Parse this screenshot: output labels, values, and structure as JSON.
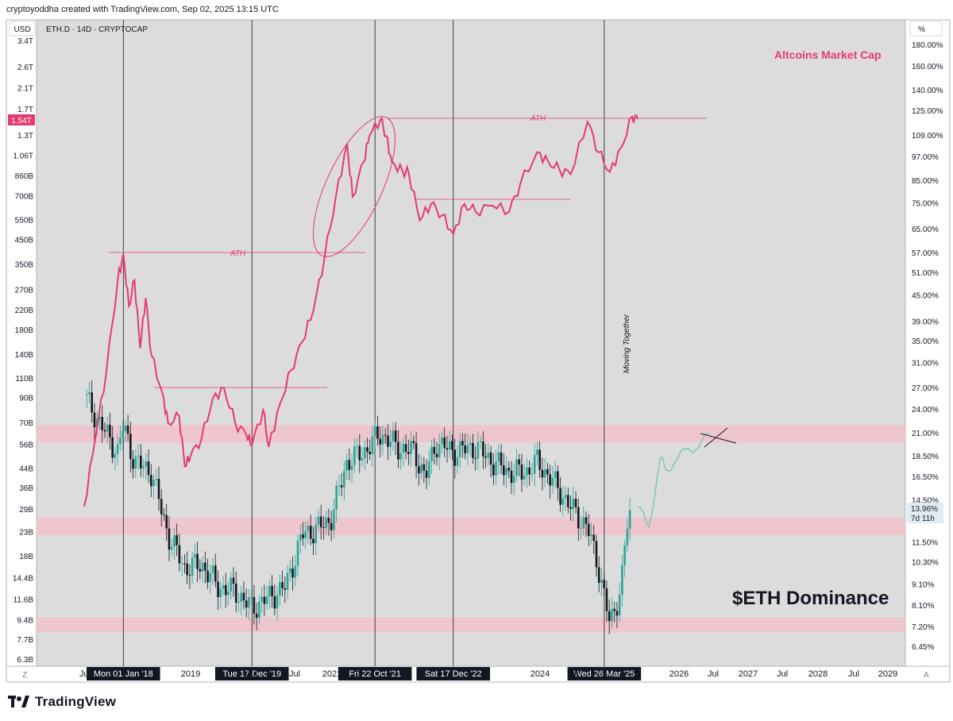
{
  "header": {
    "text": "cryptoyoddha created with TradingView.com, Sep 02, 2025 13:15 UTC"
  },
  "symbol": {
    "text": "ETH.D · 14D · CRYPTOCAP"
  },
  "currency_button": "USD",
  "percent_button": "%",
  "corner_z": "Z",
  "corner_a": "A",
  "footer": {
    "brand": "TradingView"
  },
  "colors": {
    "altcap": "#e63a6e",
    "up": "#26a69a",
    "down": "#131722",
    "zone": "#f2c2ca",
    "forecast": "#8cc4ba"
  },
  "chart_data": [
    {
      "type": "line",
      "name": "altcoins-market-cap",
      "title": "Altcoins Market Cap",
      "scale": "log",
      "y_ticks_left": [
        "3.4T",
        "2.6T",
        "2.1T",
        "1.7T",
        "1.3T",
        "1.06T",
        "860B",
        "700B",
        "550B",
        "450B",
        "350B",
        "270B",
        "220B",
        "180B",
        "140B",
        "110B",
        "90B",
        "70B",
        "56B",
        "44B",
        "36B",
        "29B",
        "23B",
        "18B",
        "14.4B",
        "11.6B",
        "9.4B",
        "7.7B",
        "6.3B"
      ],
      "last_value_label": "1.54T",
      "x_ticks": [
        "Jul",
        "2019",
        "Jul",
        "Jul",
        "2021",
        "2024",
        "Jul",
        "2026",
        "Jul",
        "2027",
        "Jul",
        "2028",
        "Jul",
        "2029"
      ],
      "points": [
        [
          "2017-06",
          30
        ],
        [
          "2017-08",
          60
        ],
        [
          "2017-10",
          120
        ],
        [
          "2017-12",
          300
        ],
        [
          "2018-01",
          390
        ],
        [
          "2018-02",
          230
        ],
        [
          "2018-03",
          300
        ],
        [
          "2018-04",
          150
        ],
        [
          "2018-05",
          250
        ],
        [
          "2018-06",
          140
        ],
        [
          "2018-08",
          95
        ],
        [
          "2018-09",
          70
        ],
        [
          "2018-11",
          75
        ],
        [
          "2018-12",
          45
        ],
        [
          "2019-01",
          50
        ],
        [
          "2019-03",
          60
        ],
        [
          "2019-05",
          90
        ],
        [
          "2019-07",
          100
        ],
        [
          "2019-09",
          70
        ],
        [
          "2019-11",
          62
        ],
        [
          "2019-12",
          56
        ],
        [
          "2020-02",
          80
        ],
        [
          "2020-03",
          55
        ],
        [
          "2020-05",
          85
        ],
        [
          "2020-07",
          120
        ],
        [
          "2020-09",
          160
        ],
        [
          "2020-11",
          220
        ],
        [
          "2021-01",
          380
        ],
        [
          "2021-03",
          700
        ],
        [
          "2021-05",
          1200
        ],
        [
          "2021-06",
          700
        ],
        [
          "2021-08",
          1000
        ],
        [
          "2021-09",
          1300
        ],
        [
          "2021-11",
          1540
        ],
        [
          "2021-12",
          1300
        ],
        [
          "2022-01",
          1000
        ],
        [
          "2022-03",
          900
        ],
        [
          "2022-04",
          900
        ],
        [
          "2022-06",
          550
        ],
        [
          "2022-08",
          650
        ],
        [
          "2022-10",
          580
        ],
        [
          "2022-12",
          480
        ],
        [
          "2023-02",
          650
        ],
        [
          "2023-04",
          600
        ],
        [
          "2023-07",
          640
        ],
        [
          "2023-10",
          600
        ],
        [
          "2023-12",
          800
        ],
        [
          "2024-03",
          1100
        ],
        [
          "2024-05",
          1000
        ],
        [
          "2024-07",
          920
        ],
        [
          "2024-09",
          880
        ],
        [
          "2024-12",
          1500
        ],
        [
          "2025-02",
          1100
        ],
        [
          "2025-04",
          900
        ],
        [
          "2025-06",
          1150
        ],
        [
          "2025-08",
          1580
        ],
        [
          "2025-09",
          1540
        ]
      ]
    },
    {
      "type": "candlestick",
      "name": "eth-dominance",
      "title": "$ETH Dominance",
      "scale": "log",
      "unit": "%",
      "y_ticks_right": [
        "180.00%",
        "160.00%",
        "140.00%",
        "125.00%",
        "109.00%",
        "97.00%",
        "85.00%",
        "75.00%",
        "65.00%",
        "57.00%",
        "51.00%",
        "45.00%",
        "39.00%",
        "35.00%",
        "31.00%",
        "27.00%",
        "24.00%",
        "21.00%",
        "18.50%",
        "16.50%",
        "14.50%",
        "13.00%",
        "11.50%",
        "10.30%",
        "9.10%",
        "8.10%",
        "7.20%",
        "6.45%"
      ],
      "last_value_label": "13.96%",
      "countdown_label": "7d 11h",
      "path": [
        [
          "2017-06",
          26
        ],
        [
          "2017-09",
          22
        ],
        [
          "2017-12",
          19
        ],
        [
          "2018-01",
          22
        ],
        [
          "2018-03",
          18
        ],
        [
          "2018-06",
          17
        ],
        [
          "2018-09",
          12
        ],
        [
          "2018-12",
          10
        ],
        [
          "2019-03",
          10.2
        ],
        [
          "2019-06",
          9
        ],
        [
          "2019-09",
          8.8
        ],
        [
          "2019-12",
          8
        ],
        [
          "2020-03",
          8.5
        ],
        [
          "2020-06",
          9
        ],
        [
          "2020-09",
          12
        ],
        [
          "2020-12",
          12.5
        ],
        [
          "2021-02",
          13
        ],
        [
          "2021-05",
          18
        ],
        [
          "2021-08",
          19
        ],
        [
          "2021-11",
          21
        ],
        [
          "2022-02",
          19.5
        ],
        [
          "2022-05",
          19
        ],
        [
          "2022-07",
          16.5
        ],
        [
          "2022-09",
          20
        ],
        [
          "2022-12",
          19
        ],
        [
          "2023-04",
          19.5
        ],
        [
          "2023-07",
          18
        ],
        [
          "2023-10",
          17
        ],
        [
          "2024-01",
          17
        ],
        [
          "2024-03",
          18
        ],
        [
          "2024-06",
          16
        ],
        [
          "2024-09",
          14
        ],
        [
          "2024-12",
          12.5
        ],
        [
          "2025-02",
          10
        ],
        [
          "2025-04",
          7.3
        ],
        [
          "2025-06",
          9
        ],
        [
          "2025-07",
          12.5
        ],
        [
          "2025-08",
          14
        ]
      ],
      "forecast": [
        [
          "2025-09",
          14
        ],
        [
          "2025-11",
          12.5
        ],
        [
          "2026-01",
          18.5
        ],
        [
          "2026-02",
          17
        ],
        [
          "2026-04",
          18.5
        ],
        [
          "2026-06",
          19
        ],
        [
          "2026-08",
          20
        ],
        [
          "2026-10",
          20.7
        ]
      ],
      "zones": [
        {
          "low": 20.0,
          "high": 22.0
        },
        {
          "low": 12.0,
          "high": 13.2
        },
        {
          "low": 7.0,
          "high": 7.6
        }
      ]
    }
  ],
  "vertical_markers": [
    {
      "date": "2018-01",
      "label": "Mon 01 Jan '18"
    },
    {
      "date": "2019-12",
      "label": "Tue 17 Dec '19"
    },
    {
      "date": "2021-10",
      "label": "Fri 22 Oct '21"
    },
    {
      "date": "2022-12",
      "label": "Sat 17 Dec '22"
    },
    {
      "date": "2025-03",
      "label": "Wed 26 Mar '25"
    }
  ],
  "annotations": {
    "ath_label": "ATH",
    "moving_together": "Moving Together"
  }
}
